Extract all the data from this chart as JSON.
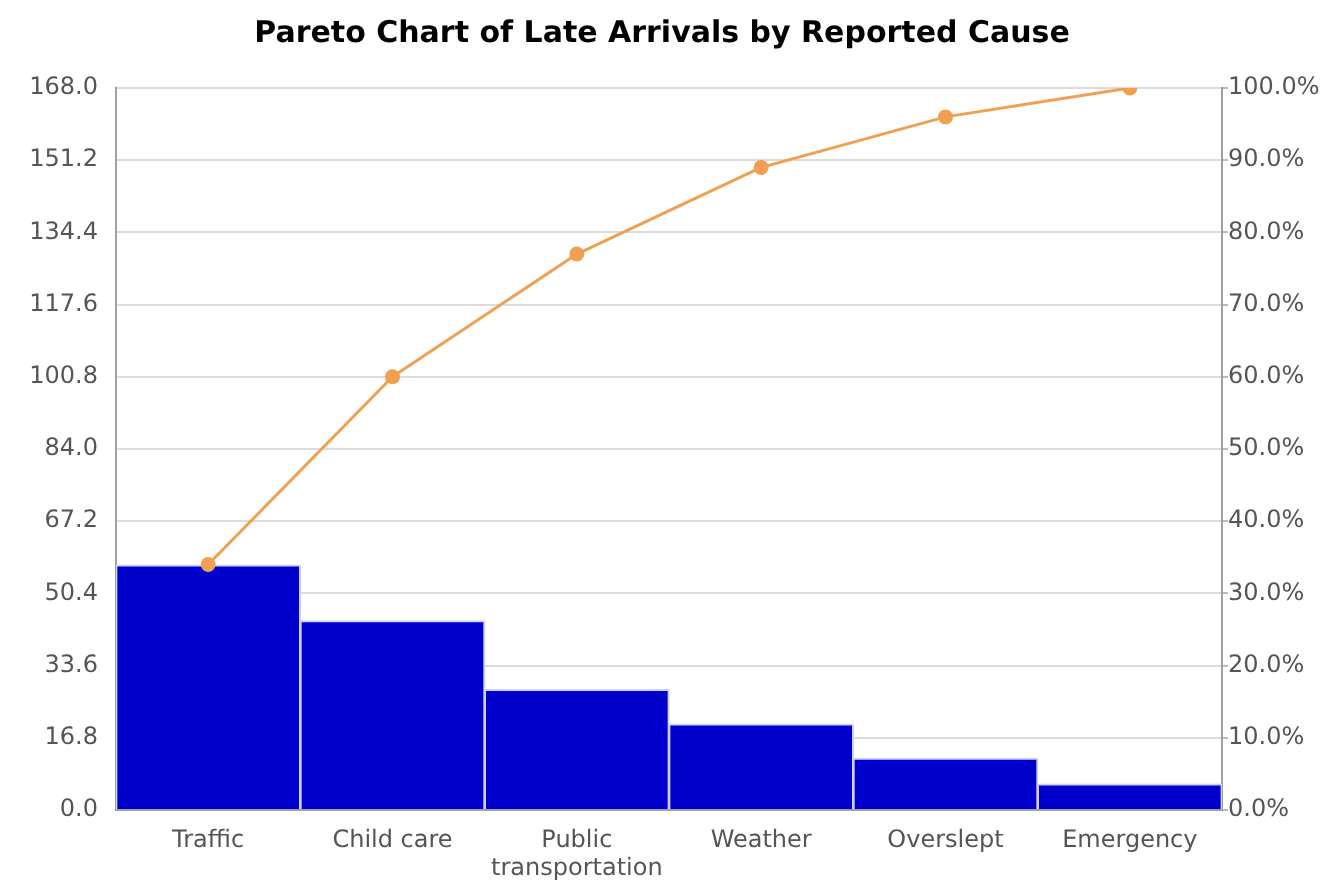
{
  "chart_data": {
    "type": "bar",
    "title": "Pareto Chart of Late Arrivals by Reported Cause",
    "categories": [
      "Traffic",
      "Child care",
      "Public transportation",
      "Weather",
      "Overslept",
      "Emergency"
    ],
    "series": [
      {
        "color": "#0000cc",
        "values": [
          57,
          44,
          28,
          20,
          12,
          6
        ]
      },
      {
        "type": "line",
        "axis": "y2",
        "color": "#f0a050",
        "values": [
          34,
          60,
          77,
          89,
          96,
          100
        ]
      }
    ],
    "ylim": [
      0,
      168
    ],
    "yticks": [
      {
        "value": 0,
        "label": "0.0"
      },
      16.8,
      33.6,
      50.4,
      67.2,
      {
        "value": 84,
        "label": "84.0"
      },
      100.8,
      117.6,
      134.4,
      151.2,
      {
        "value": 168,
        "label": "168.0"
      }
    ],
    "y2lim": [
      0,
      100
    ],
    "y2ticks": [
      {
        "value": 0,
        "label": "0.0%"
      },
      {
        "value": 10,
        "label": "10.0%"
      },
      {
        "value": 20,
        "label": "20.0%"
      },
      {
        "value": 30,
        "label": "30.0%"
      },
      {
        "value": 40,
        "label": "40.0%"
      },
      {
        "value": 50,
        "label": "50.0%"
      },
      {
        "value": 60,
        "label": "60.0%"
      },
      {
        "value": 70,
        "label": "70.0%"
      },
      {
        "value": 80,
        "label": "80.0%"
      },
      {
        "value": 90,
        "label": "90.0%"
      },
      {
        "value": 100,
        "label": "100.0%"
      }
    ],
    "grid": "y",
    "marker": "circle"
  }
}
